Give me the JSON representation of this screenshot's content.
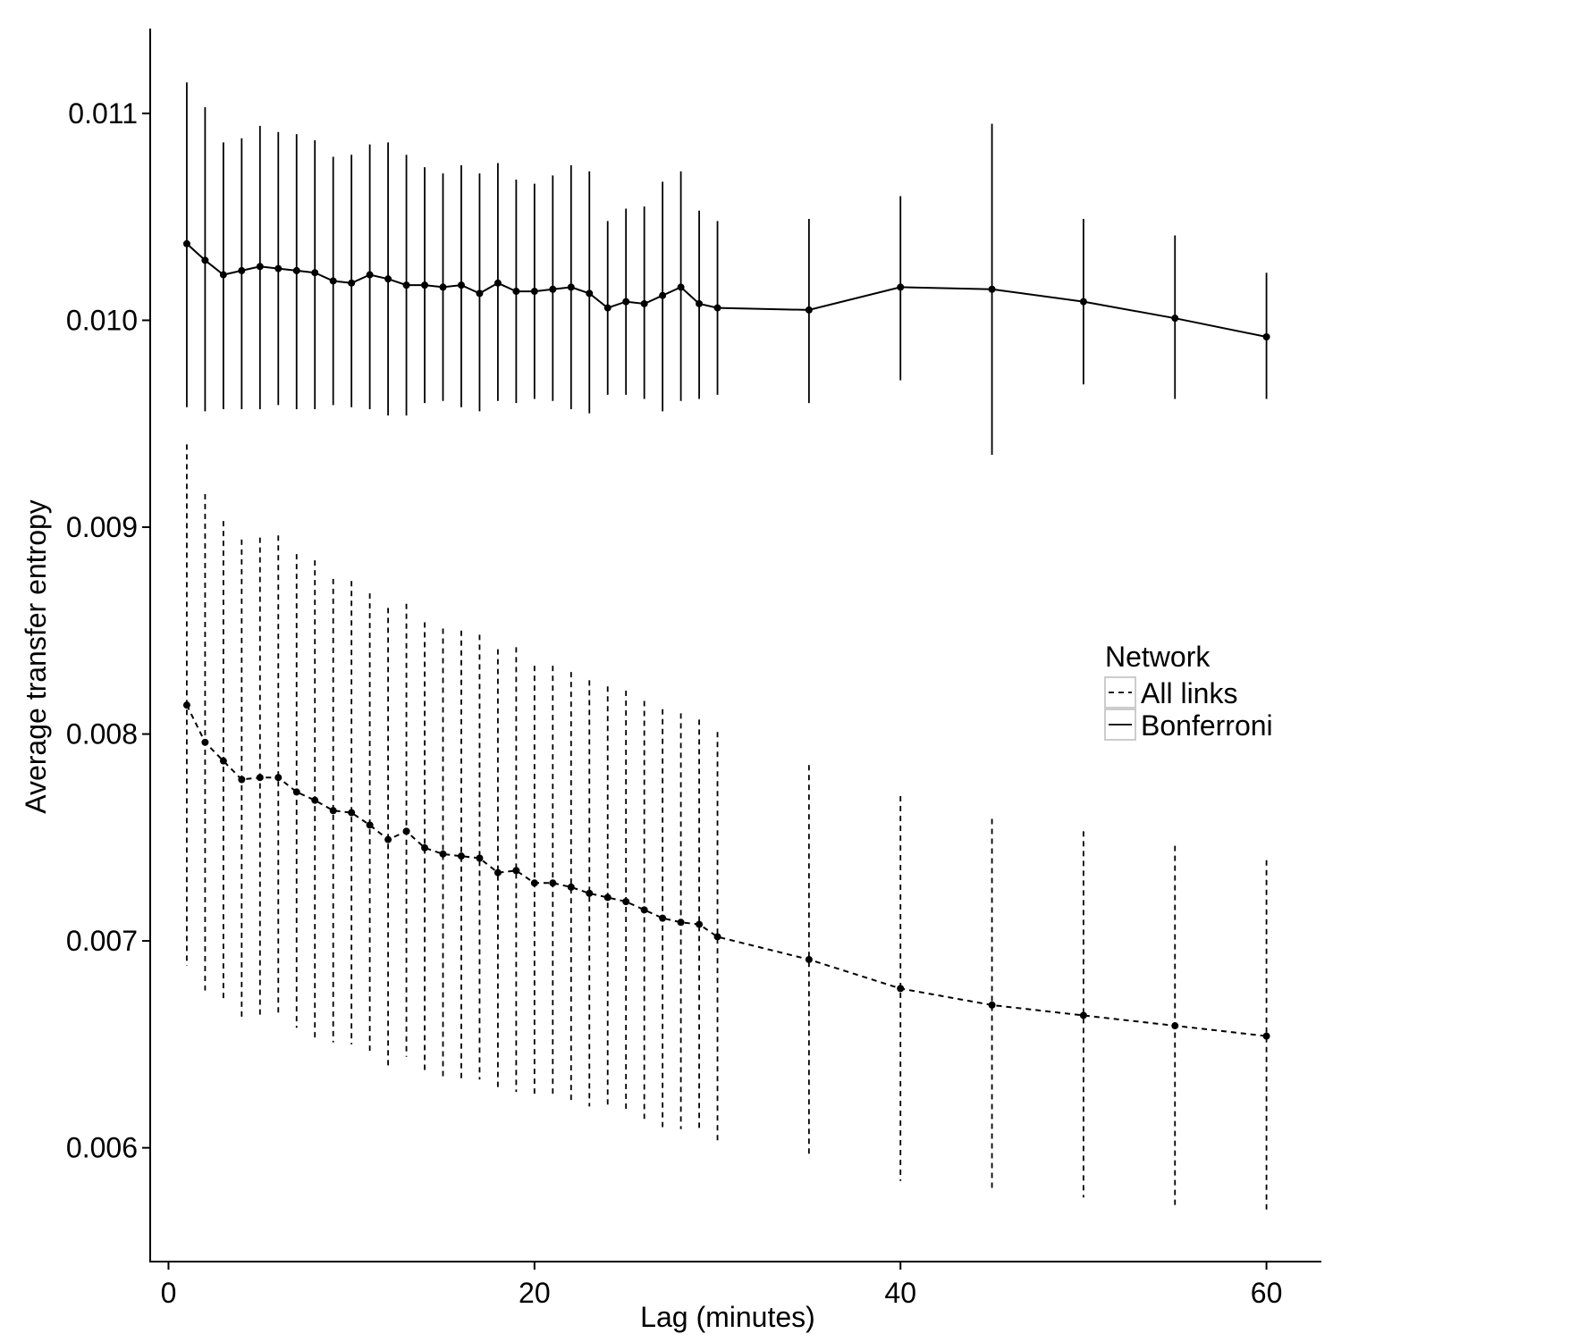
{
  "chart_data": {
    "type": "line",
    "title": "",
    "xlabel": "Lag (minutes)",
    "ylabel": "Average transfer entropy",
    "xlim": [
      -1,
      63
    ],
    "ylim": [
      0.00545,
      0.01141
    ],
    "xticks": [
      0,
      20,
      40,
      60
    ],
    "xtick_labels": [
      "0",
      "20",
      "40",
      "60"
    ],
    "yticks": [
      0.006,
      0.007,
      0.008,
      0.009,
      0.01,
      0.011
    ],
    "ytick_labels": [
      "0.006",
      "0.007",
      "0.008",
      "0.009",
      "0.010",
      "0.011"
    ],
    "grid": false,
    "legend": {
      "title": "Network",
      "position": "right",
      "entries": [
        "All links",
        "Bonferroni"
      ]
    },
    "series": [
      {
        "name": "All links",
        "line_style": "dashed",
        "x": [
          1,
          2,
          3,
          4,
          5,
          6,
          7,
          8,
          9,
          10,
          11,
          12,
          13,
          14,
          15,
          16,
          17,
          18,
          19,
          20,
          21,
          22,
          23,
          24,
          25,
          26,
          27,
          28,
          29,
          30,
          35,
          40,
          45,
          50,
          55,
          60
        ],
        "y": [
          0.00814,
          0.00796,
          0.00787,
          0.00778,
          0.00779,
          0.00779,
          0.00772,
          0.00768,
          0.00763,
          0.00762,
          0.00756,
          0.00749,
          0.00753,
          0.00745,
          0.00742,
          0.00741,
          0.0074,
          0.00733,
          0.00734,
          0.00728,
          0.00728,
          0.00726,
          0.00723,
          0.00721,
          0.00719,
          0.00715,
          0.00711,
          0.00709,
          0.00708,
          0.00702,
          0.00691,
          0.00677,
          0.00669,
          0.00664,
          0.00659,
          0.00654
        ],
        "upper": [
          0.0094,
          0.00916,
          0.00903,
          0.00894,
          0.00895,
          0.00896,
          0.00887,
          0.00884,
          0.00875,
          0.00874,
          0.00868,
          0.00861,
          0.00863,
          0.00854,
          0.00851,
          0.0085,
          0.00848,
          0.00841,
          0.00842,
          0.00833,
          0.00833,
          0.0083,
          0.00826,
          0.00823,
          0.00821,
          0.00816,
          0.00812,
          0.0081,
          0.00807,
          0.00801,
          0.00785,
          0.0077,
          0.00759,
          0.00753,
          0.00746,
          0.00739
        ],
        "lower": [
          0.00688,
          0.00676,
          0.00671,
          0.00662,
          0.00664,
          0.00664,
          0.00658,
          0.00652,
          0.00651,
          0.0065,
          0.00645,
          0.00639,
          0.00644,
          0.00636,
          0.00634,
          0.00633,
          0.00633,
          0.00628,
          0.00627,
          0.00624,
          0.00624,
          0.00622,
          0.0062,
          0.00619,
          0.00617,
          0.00614,
          0.0061,
          0.00609,
          0.00609,
          0.00603,
          0.00597,
          0.00584,
          0.0058,
          0.00576,
          0.00572,
          0.00569
        ]
      },
      {
        "name": "Bonferroni",
        "line_style": "solid",
        "x": [
          1,
          2,
          3,
          4,
          5,
          6,
          7,
          8,
          9,
          10,
          11,
          12,
          13,
          14,
          15,
          16,
          17,
          18,
          19,
          20,
          21,
          22,
          23,
          24,
          25,
          26,
          27,
          28,
          29,
          30,
          35,
          40,
          45,
          50,
          55,
          60
        ],
        "y": [
          0.01037,
          0.01029,
          0.01022,
          0.01024,
          0.01026,
          0.01025,
          0.01024,
          0.01023,
          0.01019,
          0.01018,
          0.01022,
          0.0102,
          0.01017,
          0.01017,
          0.01016,
          0.01017,
          0.01013,
          0.01018,
          0.01014,
          0.01014,
          0.01015,
          0.01016,
          0.01013,
          0.01006,
          0.01009,
          0.01008,
          0.01012,
          0.01016,
          0.01008,
          0.01006,
          0.01005,
          0.01016,
          0.01015,
          0.01009,
          0.01001,
          0.00992
        ],
        "upper": [
          0.01115,
          0.01103,
          0.01086,
          0.01088,
          0.01094,
          0.01091,
          0.0109,
          0.01087,
          0.01079,
          0.0108,
          0.01085,
          0.01086,
          0.0108,
          0.01074,
          0.01071,
          0.01075,
          0.01071,
          0.01076,
          0.01068,
          0.01066,
          0.0107,
          0.01075,
          0.01072,
          0.01048,
          0.01054,
          0.01055,
          0.01067,
          0.01072,
          0.01053,
          0.01048,
          0.01049,
          0.0106,
          0.01095,
          0.01049,
          0.01041,
          0.01023
        ],
        "lower": [
          0.00958,
          0.00956,
          0.00957,
          0.00957,
          0.00957,
          0.00959,
          0.00957,
          0.00957,
          0.00959,
          0.00958,
          0.00957,
          0.00954,
          0.00954,
          0.0096,
          0.00961,
          0.00958,
          0.00956,
          0.00961,
          0.0096,
          0.00962,
          0.00961,
          0.00957,
          0.00955,
          0.00964,
          0.00964,
          0.00962,
          0.00956,
          0.00961,
          0.00962,
          0.00964,
          0.0096,
          0.00971,
          0.00935,
          0.00969,
          0.00962,
          0.00962
        ]
      }
    ]
  }
}
